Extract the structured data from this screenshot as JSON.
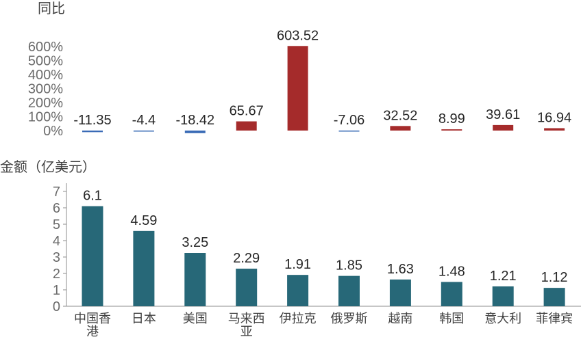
{
  "chart_data": [
    {
      "type": "bar",
      "title": "",
      "ylabel": "同比",
      "values": [
        -11.35,
        -4.4,
        -18.42,
        65.67,
        603.52,
        -7.06,
        32.52,
        8.99,
        39.61,
        16.94
      ],
      "ylim": [
        0,
        600
      ],
      "ytick_values": [
        0,
        100,
        200,
        300,
        400,
        500,
        600
      ],
      "ytick_labels": [
        "0%",
        "100%",
        "200%",
        "300%",
        "400%",
        "500%",
        "600%"
      ],
      "grid": false,
      "colors": {
        "positive": "#a52b2b",
        "negative": "#3a6bb6"
      }
    },
    {
      "type": "bar",
      "title": "",
      "ylabel": "金额（亿美元）",
      "categories": [
        "中国香港",
        "日本",
        "美国",
        "马来西亚",
        "伊拉克",
        "俄罗斯",
        "越南",
        "韩国",
        "意大利",
        "菲律宾"
      ],
      "values": [
        6.1,
        4.59,
        3.25,
        2.29,
        1.91,
        1.85,
        1.63,
        1.48,
        1.21,
        1.12
      ],
      "ylim": [
        0,
        7
      ],
      "ytick_values": [
        0,
        1,
        2,
        3,
        4,
        5,
        6,
        7
      ],
      "ytick_labels": [
        "0",
        "1",
        "2",
        "3",
        "4",
        "5",
        "6",
        "7"
      ],
      "grid": false,
      "colors": {
        "bar": "#276878",
        "axis": "#8c8c8c"
      }
    }
  ]
}
